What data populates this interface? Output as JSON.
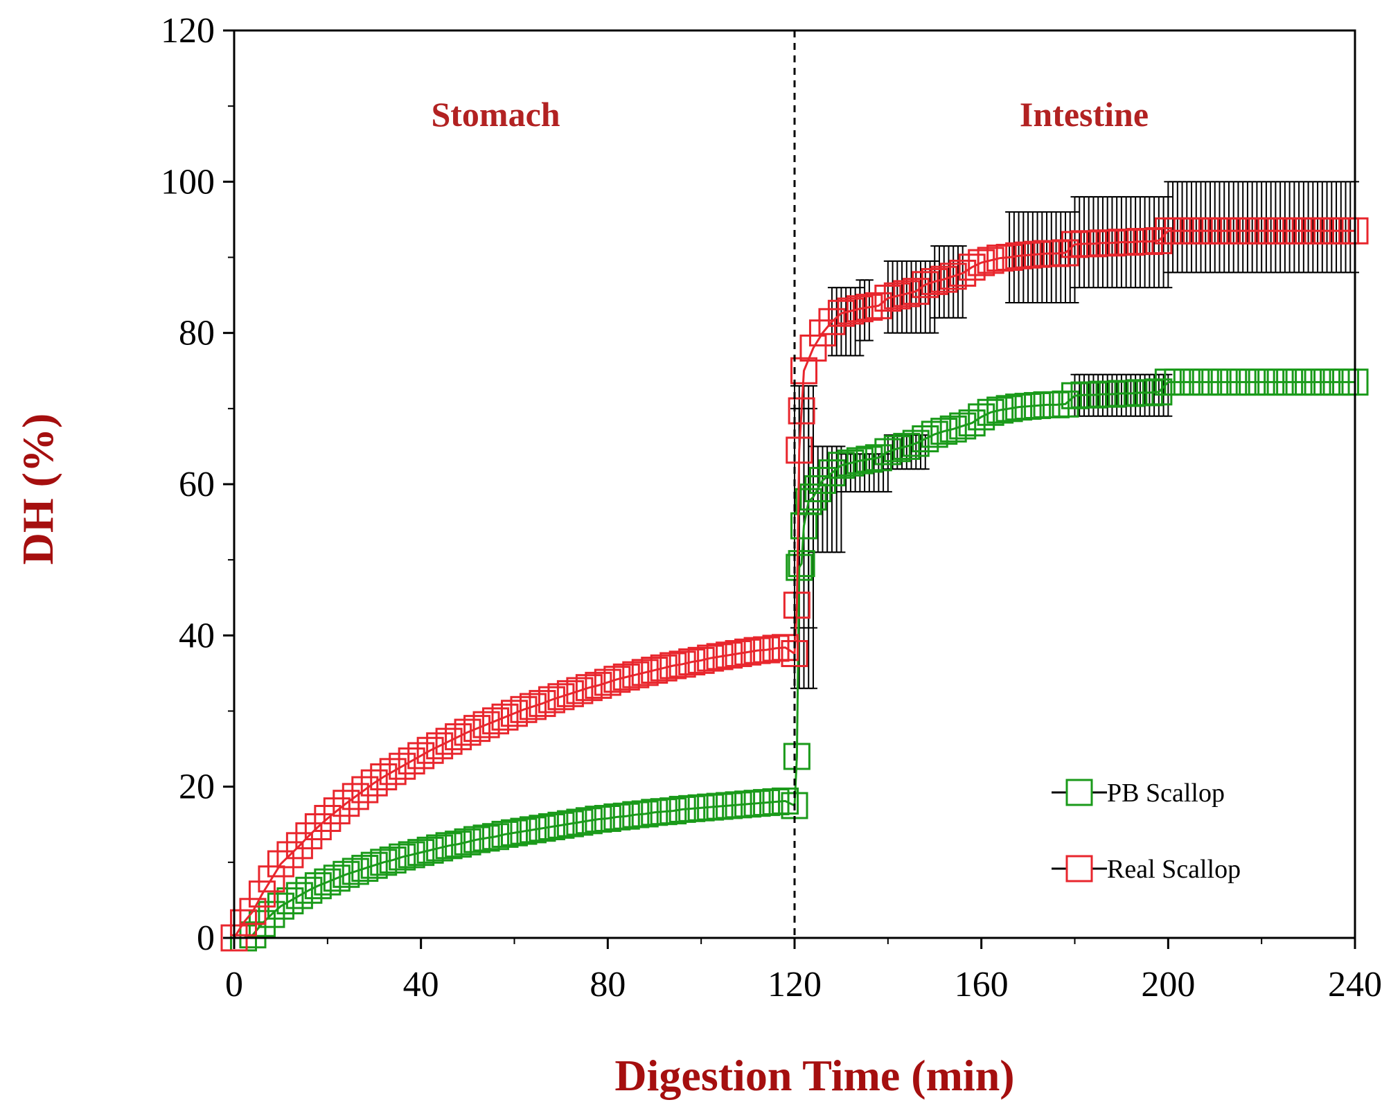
{
  "chart_data": {
    "type": "scatter",
    "title": "",
    "xlabel": "Digestion Time (min)",
    "ylabel": "DH (%)",
    "xlim": [
      0,
      240
    ],
    "ylim": [
      0,
      120
    ],
    "x_ticks": [
      0,
      40,
      80,
      120,
      160,
      200,
      240
    ],
    "y_ticks": [
      0,
      20,
      40,
      60,
      80,
      100,
      120
    ],
    "grid": false,
    "legend_position": "bottom-right",
    "divider_x": 120,
    "phase_labels": [
      {
        "text": "Stomach",
        "x": 56,
        "y": 109
      },
      {
        "text": "Intestine",
        "x": 182,
        "y": 109
      }
    ],
    "colors": {
      "axis_title": "#a50f0f",
      "phase_label": "#b22222",
      "pb_scallop": "#1a9a1a",
      "real_scallop": "#e8262d",
      "error_bar": "#000000"
    },
    "series": [
      {
        "name": "PB Scallop",
        "color": "#1a9a1a",
        "x": [
          0,
          2,
          4,
          6,
          8,
          10,
          12,
          14,
          16,
          18,
          20,
          22,
          24,
          26,
          28,
          30,
          32,
          34,
          36,
          38,
          40,
          42,
          44,
          46,
          48,
          50,
          52,
          54,
          56,
          58,
          60,
          62,
          64,
          66,
          68,
          70,
          72,
          74,
          76,
          78,
          80,
          82,
          84,
          86,
          88,
          90,
          92,
          94,
          96,
          98,
          100,
          102,
          104,
          106,
          108,
          110,
          112,
          114,
          116,
          118,
          120,
          120.5,
          121,
          121.5,
          122,
          123,
          124,
          125,
          126,
          128,
          130,
          132,
          134,
          136,
          138,
          140,
          142,
          144,
          146,
          148,
          150,
          152,
          154,
          156,
          158,
          160,
          162,
          164,
          166,
          168,
          170,
          172,
          174,
          176,
          178,
          180,
          182,
          184,
          186,
          188,
          190,
          192,
          194,
          196,
          198,
          200,
          202,
          204,
          206,
          208,
          210,
          212,
          214,
          216,
          218,
          220,
          222,
          224,
          226,
          228,
          230,
          232,
          234,
          236,
          238,
          240
        ],
        "y": [
          0,
          0,
          0.4,
          1.9,
          3.1,
          4.2,
          4.9,
          5.6,
          6.3,
          6.9,
          7.4,
          7.9,
          8.4,
          8.8,
          9.2,
          9.6,
          10.0,
          10.3,
          10.7,
          11.0,
          11.3,
          11.6,
          11.9,
          12.2,
          12.4,
          12.7,
          13.0,
          13.2,
          13.4,
          13.7,
          13.9,
          14.1,
          14.3,
          14.5,
          14.7,
          14.9,
          15.1,
          15.3,
          15.5,
          15.7,
          15.8,
          16.0,
          16.1,
          16.3,
          16.4,
          16.6,
          16.7,
          16.8,
          17.0,
          17.1,
          17.2,
          17.3,
          17.4,
          17.5,
          17.6,
          17.7,
          17.8,
          17.9,
          18.0,
          18.1,
          17.5,
          24.0,
          49.0,
          49.5,
          54.5,
          57.7,
          58.3,
          59.4,
          60.5,
          61.5,
          62.5,
          62.8,
          63.1,
          63.3,
          63.5,
          64.3,
          64.7,
          65.0,
          65.4,
          66.0,
          66.6,
          67.0,
          67.3,
          67.7,
          68.1,
          68.9,
          69.5,
          69.8,
          70.0,
          70.2,
          70.3,
          70.4,
          70.5,
          70.5,
          70.6,
          71.7,
          71.8,
          71.8,
          71.9,
          71.9,
          72.0,
          72.0,
          72.1,
          72.1,
          72.2,
          73.5,
          73.5,
          73.5,
          73.5,
          73.5,
          73.5,
          73.5,
          73.5,
          73.5,
          73.5,
          73.5,
          73.5,
          73.5,
          73.5,
          73.5,
          73.5,
          73.5,
          73.5,
          73.5,
          73.5,
          73.5
        ]
      },
      {
        "name": "Real Scallop",
        "color": "#e8262d",
        "x": [
          0,
          2,
          4,
          6,
          8,
          10,
          12,
          14,
          16,
          18,
          20,
          22,
          24,
          26,
          28,
          30,
          32,
          34,
          36,
          38,
          40,
          42,
          44,
          46,
          48,
          50,
          52,
          54,
          56,
          58,
          60,
          62,
          64,
          66,
          68,
          70,
          72,
          74,
          76,
          78,
          80,
          82,
          84,
          86,
          88,
          90,
          92,
          94,
          96,
          98,
          100,
          102,
          104,
          106,
          108,
          110,
          112,
          114,
          116,
          118,
          120,
          120.5,
          121,
          121.5,
          122,
          124,
          126,
          128,
          130,
          132,
          134,
          136,
          138,
          140,
          142,
          144,
          146,
          148,
          150,
          152,
          154,
          156,
          158,
          160,
          162,
          164,
          166,
          168,
          170,
          172,
          174,
          176,
          178,
          180,
          182,
          184,
          186,
          188,
          190,
          192,
          194,
          196,
          198,
          200,
          202,
          204,
          206,
          208,
          210,
          212,
          214,
          216,
          218,
          220,
          222,
          224,
          226,
          228,
          230,
          232,
          234,
          236,
          238,
          240
        ],
        "y": [
          0,
          2,
          3.5,
          5.8,
          7.8,
          9.8,
          11.0,
          12.2,
          13.5,
          14.7,
          15.8,
          16.8,
          17.8,
          18.7,
          19.6,
          20.5,
          21.3,
          22.0,
          22.7,
          23.4,
          24.1,
          24.8,
          25.4,
          26.0,
          26.6,
          27.2,
          27.7,
          28.2,
          28.7,
          29.2,
          29.7,
          30.2,
          30.6,
          31.0,
          31.5,
          31.9,
          32.3,
          32.7,
          33.1,
          33.4,
          33.8,
          34.2,
          34.5,
          34.8,
          35.1,
          35.4,
          35.7,
          36.0,
          36.2,
          36.5,
          36.7,
          37.0,
          37.2,
          37.4,
          37.6,
          37.8,
          38.0,
          38.1,
          38.3,
          38.4,
          37.6,
          44.0,
          64.5,
          69.7,
          75.0,
          78.0,
          80.0,
          81.5,
          82.6,
          82.9,
          83.2,
          83.4,
          83.6,
          84.6,
          84.9,
          85.2,
          85.5,
          86.4,
          86.8,
          87.1,
          87.5,
          87.9,
          88.7,
          89.3,
          89.6,
          89.9,
          90.0,
          90.2,
          90.3,
          90.4,
          90.5,
          90.5,
          90.6,
          91.7,
          91.8,
          91.8,
          91.9,
          91.9,
          92.0,
          92.0,
          92.1,
          92.1,
          92.2,
          93.5,
          93.5,
          93.5,
          93.5,
          93.5,
          93.5,
          93.5,
          93.5,
          93.5,
          93.5,
          93.5,
          93.5,
          93.5,
          93.5,
          93.5,
          93.5,
          93.5,
          93.5,
          93.5,
          93.5,
          93.5
        ]
      }
    ],
    "error_bars": [
      {
        "series": "PB Scallop",
        "x_from": 120,
        "x_to": 124,
        "low": 41,
        "high": 70
      },
      {
        "series": "PB Scallop",
        "x_from": 124,
        "x_to": 130,
        "low": 51,
        "high": 65
      },
      {
        "series": "PB Scallop",
        "x_from": 130,
        "x_to": 140,
        "low": 59,
        "high": 64
      },
      {
        "series": "PB Scallop",
        "x_from": 140,
        "x_to": 148,
        "low": 62,
        "high": 66.5
      },
      {
        "series": "PB Scallop",
        "x_from": 180,
        "x_to": 200,
        "low": 69,
        "high": 74.5
      },
      {
        "series": "Real Scallop",
        "x_from": 120,
        "x_to": 124,
        "low": 33,
        "high": 73
      },
      {
        "series": "Real Scallop",
        "x_from": 128,
        "x_to": 134,
        "low": 77,
        "high": 86
      },
      {
        "series": "Real Scallop",
        "x_from": 134,
        "x_to": 136,
        "low": 79,
        "high": 87
      },
      {
        "series": "Real Scallop",
        "x_from": 140,
        "x_to": 150,
        "low": 80,
        "high": 89.5
      },
      {
        "series": "Real Scallop",
        "x_from": 150,
        "x_to": 156,
        "low": 82,
        "high": 91.5
      },
      {
        "series": "Real Scallop",
        "x_from": 166,
        "x_to": 180,
        "low": 84,
        "high": 96
      },
      {
        "series": "Real Scallop",
        "x_from": 180,
        "x_to": 200,
        "low": 86,
        "high": 98
      },
      {
        "series": "Real Scallop",
        "x_from": 200,
        "x_to": 240,
        "low": 88,
        "high": 100
      }
    ]
  }
}
